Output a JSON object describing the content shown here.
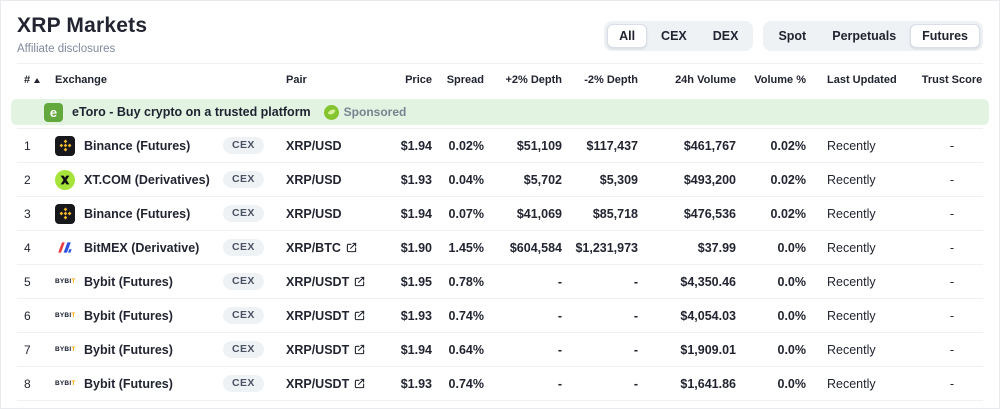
{
  "page": {
    "title": "XRP Markets",
    "affiliate_link_label": "Affiliate disclosures"
  },
  "filters": {
    "market_type": {
      "options": [
        "All",
        "CEX",
        "DEX"
      ],
      "selected": "All"
    },
    "trade_type": {
      "options": [
        "Spot",
        "Perpetuals",
        "Futures"
      ],
      "selected": "Futures"
    }
  },
  "sponsored_banner": {
    "logo_icon": "etoro-logo",
    "logo_letter": "e",
    "text": "eToro - Buy crypto on a trusted platform",
    "sponsored_icon": "sponsored-leaf-icon",
    "label": "Sponsored"
  },
  "table": {
    "columns": [
      "#",
      "Exchange",
      "Pair",
      "Price",
      "Spread",
      "+2% Depth",
      "-2% Depth",
      "24h Volume",
      "Volume %",
      "Last Updated",
      "Trust Score"
    ],
    "sort": {
      "column": "#",
      "direction": "ascending",
      "icon": "sort-ascending-icon"
    },
    "rows": [
      {
        "rank": "1",
        "exchange": "Binance (Futures)",
        "logo_icon": "binance-logo",
        "badge": "CEX",
        "pair": "XRP/USD",
        "pair_external_link": false,
        "price": "$1.94",
        "spread": "0.02%",
        "depth_plus2": "$51,109",
        "depth_minus2": "$117,437",
        "volume_24h": "$461,767",
        "volume_pct": "0.02%",
        "last_updated": "Recently",
        "trust_score": "-"
      },
      {
        "rank": "2",
        "exchange": "XT.COM (Derivatives)",
        "logo_icon": "xt-logo",
        "badge": "CEX",
        "pair": "XRP/USD",
        "pair_external_link": false,
        "price": "$1.93",
        "spread": "0.04%",
        "depth_plus2": "$5,702",
        "depth_minus2": "$5,309",
        "volume_24h": "$493,200",
        "volume_pct": "0.02%",
        "last_updated": "Recently",
        "trust_score": "-"
      },
      {
        "rank": "3",
        "exchange": "Binance (Futures)",
        "logo_icon": "binance-logo",
        "badge": "CEX",
        "pair": "XRP/USD",
        "pair_external_link": false,
        "price": "$1.94",
        "spread": "0.07%",
        "depth_plus2": "$41,069",
        "depth_minus2": "$85,718",
        "volume_24h": "$476,536",
        "volume_pct": "0.02%",
        "last_updated": "Recently",
        "trust_score": "-"
      },
      {
        "rank": "4",
        "exchange": "BitMEX (Derivative)",
        "logo_icon": "bitmex-logo",
        "badge": "CEX",
        "pair": "XRP/BTC",
        "pair_external_link": true,
        "price": "$1.90",
        "spread": "1.45%",
        "depth_plus2": "$604,584",
        "depth_minus2": "$1,231,973",
        "volume_24h": "$37.99",
        "volume_pct": "0.0%",
        "last_updated": "Recently",
        "trust_score": "-"
      },
      {
        "rank": "5",
        "exchange": "Bybit (Futures)",
        "logo_icon": "bybit-logo",
        "badge": "CEX",
        "pair": "XRP/USDT",
        "pair_external_link": true,
        "price": "$1.95",
        "spread": "0.78%",
        "depth_plus2": "-",
        "depth_minus2": "-",
        "volume_24h": "$4,350.46",
        "volume_pct": "0.0%",
        "last_updated": "Recently",
        "trust_score": "-"
      },
      {
        "rank": "6",
        "exchange": "Bybit (Futures)",
        "logo_icon": "bybit-logo",
        "badge": "CEX",
        "pair": "XRP/USDT",
        "pair_external_link": true,
        "price": "$1.93",
        "spread": "0.74%",
        "depth_plus2": "-",
        "depth_minus2": "-",
        "volume_24h": "$4,054.03",
        "volume_pct": "0.0%",
        "last_updated": "Recently",
        "trust_score": "-"
      },
      {
        "rank": "7",
        "exchange": "Bybit (Futures)",
        "logo_icon": "bybit-logo",
        "badge": "CEX",
        "pair": "XRP/USDT",
        "pair_external_link": true,
        "price": "$1.94",
        "spread": "0.64%",
        "depth_plus2": "-",
        "depth_minus2": "-",
        "volume_24h": "$1,909.01",
        "volume_pct": "0.0%",
        "last_updated": "Recently",
        "trust_score": "-"
      },
      {
        "rank": "8",
        "exchange": "Bybit (Futures)",
        "logo_icon": "bybit-logo",
        "badge": "CEX",
        "pair": "XRP/USDT",
        "pair_external_link": true,
        "price": "$1.93",
        "spread": "0.74%",
        "depth_plus2": "-",
        "depth_minus2": "-",
        "volume_24h": "$1,641.86",
        "volume_pct": "0.0%",
        "last_updated": "Recently",
        "trust_score": "-"
      }
    ]
  },
  "colors": {
    "text_primary": "#222531",
    "text_secondary": "#808a9d",
    "divider": "#eff2f5",
    "badge_bg": "#eff2f5",
    "banner_bg": "#e2f3e2",
    "group_bg": "#eff2f5",
    "binance_yellow": "#f3ba2f",
    "xt_lime": "#a6e43b",
    "bitmex_red": "#eb3b41",
    "bitmex_blue": "#2b52dd",
    "bybit_yellow": "#f7a600",
    "etoro_green": "#62a83c",
    "sponsored_green": "#84c52f"
  }
}
